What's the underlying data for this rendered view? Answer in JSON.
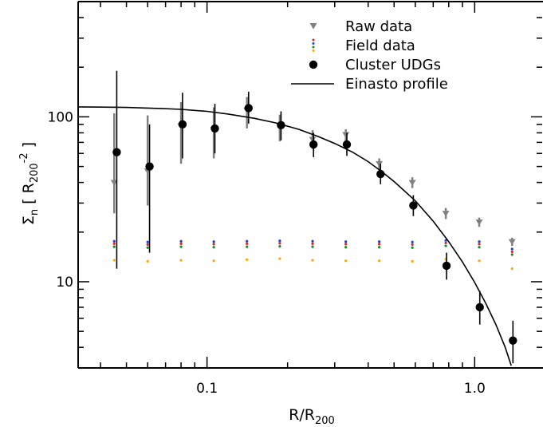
{
  "chart_data": {
    "type": "scatter",
    "xlabel_main": "R/R",
    "xlabel_sub": "200",
    "ylabel_main": "Σ",
    "ylabel_sub": "n",
    "ylabel_unit_open": "[",
    "ylabel_unit_main": "R",
    "ylabel_unit_sub": "200",
    "ylabel_unit_exp": "-2",
    "ylabel_unit_close": "]",
    "xscale": "log",
    "yscale": "log",
    "xlim": [
      0.033,
      1.8
    ],
    "ylim": [
      3.0,
      500.0
    ],
    "xticks": [
      {
        "value": 0.1,
        "label": "0.1"
      },
      {
        "value": 1.0,
        "label": "1.0"
      }
    ],
    "yticks": [
      {
        "value": 10,
        "label": "10"
      },
      {
        "value": 100,
        "label": "100"
      }
    ],
    "legend_position": "top-right",
    "legend": [
      {
        "label": "Raw data",
        "marker": "triangle-down",
        "color": "#808080"
      },
      {
        "label": "Field data",
        "marker": "dots",
        "colors": [
          "#d62728",
          "#1f3fd4",
          "#1a8a1a",
          "#ffa500"
        ]
      },
      {
        "label": "Cluster UDGs",
        "marker": "circle",
        "color": "#000000"
      },
      {
        "label": "Einasto profile",
        "marker": "line",
        "color": "#000000"
      }
    ],
    "series": [
      {
        "name": "Raw data",
        "marker": "triangle-down",
        "color": "#808080",
        "x": [
          0.045,
          0.06,
          0.08,
          0.106,
          0.141,
          0.187,
          0.248,
          0.33,
          0.44,
          0.585,
          0.78,
          1.04,
          1.38
        ],
        "y": [
          40,
          47,
          88,
          84,
          110,
          88,
          73,
          78,
          52,
          40,
          26,
          23,
          17.5
        ],
        "yerr_low": [
          14,
          18,
          36,
          28,
          25,
          17,
          9,
          7,
          4,
          3,
          2,
          1.5,
          1
        ],
        "yerr_high": [
          65,
          55,
          35,
          30,
          22,
          15,
          10,
          6,
          4,
          3,
          2,
          1.5,
          1
        ]
      },
      {
        "name": "Cluster UDGs",
        "marker": "circle",
        "color": "#000000",
        "x": [
          0.046,
          0.061,
          0.081,
          0.107,
          0.143,
          0.189,
          0.25,
          0.333,
          0.445,
          0.59,
          0.785,
          1.045,
          1.39
        ],
        "y": [
          61,
          50,
          90,
          85,
          113,
          89,
          68,
          68,
          45,
          29,
          12.5,
          7.0,
          4.4
        ],
        "yerr_low": [
          49,
          35,
          34,
          25,
          22,
          17,
          11,
          10,
          6,
          4,
          2.2,
          1.5,
          1.2
        ],
        "yerr_high": [
          129,
          40,
          50,
          35,
          29,
          19,
          12,
          12,
          7,
          4.5,
          2.5,
          1.8,
          1.4
        ]
      },
      {
        "name": "Field data",
        "marker": "dots",
        "colors": [
          "#d62728",
          "#1f3fd4",
          "#1a8a1a",
          "#ffa500"
        ],
        "x": [
          0.045,
          0.06,
          0.08,
          0.106,
          0.141,
          0.187,
          0.248,
          0.33,
          0.44,
          0.585,
          0.78,
          1.04,
          1.38
        ],
        "y_red": [
          17.0,
          16.8,
          17.0,
          16.9,
          17.0,
          17.1,
          17.0,
          16.9,
          16.9,
          16.8,
          17.2,
          16.9,
          15.2
        ],
        "y_blue": [
          17.6,
          17.4,
          17.6,
          17.5,
          17.6,
          17.7,
          17.6,
          17.5,
          17.5,
          17.4,
          17.8,
          17.5,
          15.8
        ],
        "y_green": [
          16.3,
          16.1,
          16.3,
          16.2,
          16.3,
          16.4,
          16.3,
          16.2,
          16.2,
          16.1,
          16.5,
          16.2,
          14.6
        ],
        "y_orange": [
          13.5,
          13.3,
          13.5,
          13.4,
          13.6,
          13.8,
          13.5,
          13.4,
          13.4,
          13.3,
          13.7,
          13.4,
          12.0
        ]
      },
      {
        "name": "Einasto profile",
        "type": "line",
        "color": "#000000",
        "x": [
          0.033,
          0.04,
          0.05,
          0.06,
          0.07,
          0.08,
          0.1,
          0.12,
          0.15,
          0.18,
          0.22,
          0.26,
          0.3,
          0.35,
          0.4,
          0.45,
          0.5,
          0.6,
          0.7,
          0.8,
          0.9,
          1.0,
          1.1,
          1.2,
          1.3,
          1.37
        ],
        "y": [
          115,
          114.5,
          114,
          113,
          112,
          111,
          108,
          104,
          98,
          92,
          84,
          76,
          69,
          61,
          53.5,
          46.5,
          40.5,
          31,
          23.3,
          17.5,
          13.2,
          9.9,
          7.4,
          5.5,
          4.0,
          3.1
        ]
      }
    ]
  }
}
